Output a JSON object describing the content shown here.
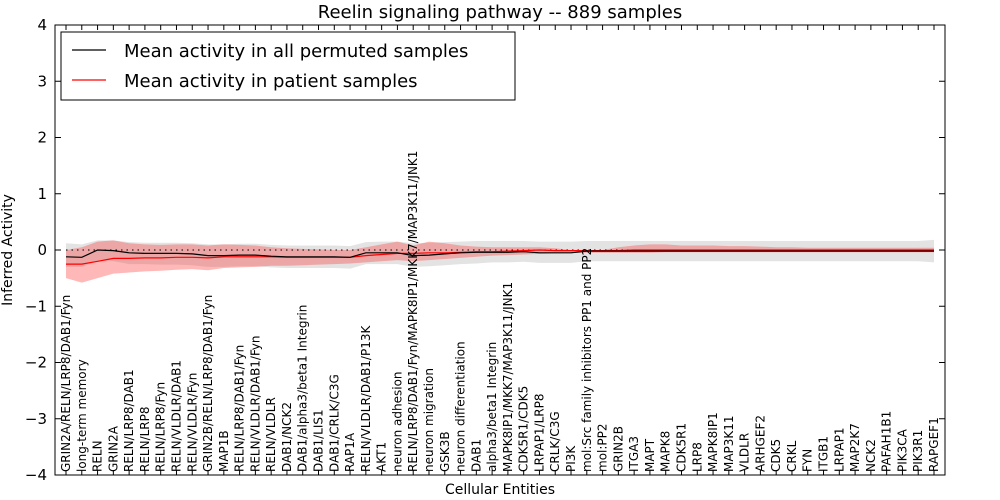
{
  "chart_data": {
    "type": "line",
    "title": "Reelin signaling pathway -- 889 samples",
    "xlabel": "Cellular Entities",
    "ylabel": "Inferred Activity",
    "ylim": [
      -4,
      4
    ],
    "yticks": [
      -4,
      -3,
      -2,
      -1,
      0,
      1,
      2,
      3,
      4
    ],
    "ytick_labels": [
      "−4",
      "−3",
      "−2",
      "−1",
      "0",
      "1",
      "2",
      "3",
      "4"
    ],
    "legend_position": "top-left",
    "categories": [
      "GRIN2A/RELN/LRP8/DAB1/Fyn",
      "long-term memory",
      "RELN",
      "GRIN2A",
      "RELN/LRP8/DAB1",
      "RELN/LRP8",
      "RELN/LRP8/Fyn",
      "RELN/VLDLR/DAB1",
      "RELN/VLDLR/Fyn",
      "GRIN2B/RELN/LRP8/DAB1/Fyn",
      "MAP1B",
      "RELN/LRP8/DAB1/Fyn",
      "RELN/VLDLR/DAB1/Fyn",
      "RELN/VLDLR",
      "DAB1/NCK2",
      "DAB1/alpha3/beta1 Integrin",
      "DAB1/LIS1",
      "DAB1/CRLK/C3G",
      "RAP1A",
      "RELN/VLDLR/DAB1/P13K",
      "AKT1",
      "neuron adhesion",
      "RELN/LRP8/DAB1/Fyn/MAPK8IP1/MKK7/MAP3K11/JNK1",
      "neuron migration",
      "GSK3B",
      "neuron differentiation",
      "DAB1",
      "alpha3/beta1 Integrin",
      "MAPK8IP1/MKK7/MAP3K11/JNK1",
      "CDK5R1/CDK5",
      "LRPAP1/LRP8",
      "CRLK/C3G",
      "PI3K",
      "mol:Src family inhibitors PP1 and PP2",
      "mol:PP2",
      "GRIN2B",
      "ITGA3",
      "MAPT",
      "MAPK8",
      "CDK5R1",
      "LRP8",
      "MAPK8IP1",
      "MAP3K11",
      "VLDLR",
      "ARHGEF2",
      "CDK5",
      "CRKL",
      "FYN",
      "ITGB1",
      "LRPAP1",
      "MAP2K7",
      "NCK2",
      "PAFAH1B1",
      "PIK3CA",
      "PIK3R1",
      "RAPGEF1"
    ],
    "series": [
      {
        "name": "Mean activity in all permuted samples",
        "color": "#000000",
        "values": [
          -0.12,
          -0.13,
          0.0,
          -0.01,
          -0.05,
          -0.06,
          -0.06,
          -0.06,
          -0.07,
          -0.1,
          -0.1,
          -0.09,
          -0.09,
          -0.11,
          -0.12,
          -0.12,
          -0.12,
          -0.12,
          -0.13,
          -0.05,
          -0.05,
          -0.05,
          -0.1,
          -0.09,
          -0.07,
          -0.05,
          -0.04,
          -0.04,
          -0.04,
          -0.03,
          -0.05,
          -0.05,
          -0.05,
          -0.02,
          -0.02,
          -0.02,
          -0.02,
          -0.02,
          -0.02,
          -0.02,
          -0.02,
          -0.02,
          -0.02,
          -0.02,
          -0.02,
          -0.02,
          -0.02,
          -0.02,
          -0.02,
          -0.02,
          -0.02,
          -0.02,
          -0.02,
          -0.02,
          -0.02,
          -0.02
        ],
        "lower": [
          -0.3,
          -0.3,
          -0.2,
          -0.2,
          -0.25,
          -0.25,
          -0.26,
          -0.26,
          -0.27,
          -0.3,
          -0.3,
          -0.29,
          -0.29,
          -0.31,
          -0.32,
          -0.32,
          -0.32,
          -0.32,
          -0.33,
          -0.25,
          -0.25,
          -0.25,
          -0.3,
          -0.29,
          -0.27,
          -0.25,
          -0.24,
          -0.22,
          -0.22,
          -0.21,
          -0.23,
          -0.23,
          -0.23,
          -0.2,
          -0.2,
          -0.2,
          -0.2,
          -0.2,
          -0.2,
          -0.2,
          -0.2,
          -0.2,
          -0.2,
          -0.2,
          -0.2,
          -0.2,
          -0.2,
          -0.2,
          -0.2,
          -0.2,
          -0.2,
          -0.2,
          -0.2,
          -0.2,
          -0.2,
          -0.22
        ],
        "upper": [
          0.12,
          0.1,
          0.17,
          0.17,
          0.14,
          0.13,
          0.13,
          0.13,
          0.12,
          0.1,
          0.1,
          0.11,
          0.11,
          0.09,
          0.08,
          0.08,
          0.08,
          0.08,
          0.07,
          0.14,
          0.15,
          0.15,
          0.12,
          0.13,
          0.14,
          0.15,
          0.16,
          0.16,
          0.16,
          0.16,
          0.15,
          0.15,
          0.15,
          0.16,
          0.16,
          0.16,
          0.16,
          0.16,
          0.16,
          0.16,
          0.16,
          0.16,
          0.16,
          0.16,
          0.16,
          0.16,
          0.16,
          0.16,
          0.16,
          0.16,
          0.16,
          0.16,
          0.16,
          0.16,
          0.16,
          0.18
        ]
      },
      {
        "name": "Mean activity in patient samples",
        "color": "#ff0000",
        "values": [
          -0.25,
          -0.25,
          -0.2,
          -0.15,
          -0.15,
          -0.14,
          -0.14,
          -0.13,
          -0.13,
          -0.14,
          -0.12,
          -0.12,
          -0.12,
          -0.12,
          -0.13,
          -0.13,
          -0.13,
          -0.13,
          -0.13,
          -0.1,
          -0.08,
          -0.06,
          -0.06,
          -0.05,
          -0.05,
          -0.04,
          -0.03,
          -0.03,
          -0.02,
          -0.01,
          0.0,
          -0.01,
          -0.01,
          -0.01,
          -0.01,
          -0.01,
          0.0,
          0.0,
          0.0,
          0.0,
          0.0,
          0.0,
          0.0,
          0.0,
          0.0,
          0.0,
          0.0,
          0.0,
          0.0,
          0.0,
          0.0,
          0.0,
          0.0,
          0.0,
          0.0,
          0.0
        ],
        "lower": [
          -0.5,
          -0.58,
          -0.5,
          -0.42,
          -0.4,
          -0.38,
          -0.37,
          -0.35,
          -0.34,
          -0.36,
          -0.32,
          -0.31,
          -0.3,
          -0.28,
          -0.28,
          -0.27,
          -0.26,
          -0.25,
          -0.24,
          -0.22,
          -0.2,
          -0.18,
          -0.2,
          -0.18,
          -0.16,
          -0.14,
          -0.12,
          -0.1,
          -0.09,
          -0.08,
          -0.07,
          -0.06,
          -0.05,
          -0.05,
          -0.05,
          -0.05,
          -0.05,
          -0.05,
          -0.04,
          -0.04,
          -0.04,
          -0.04,
          -0.04,
          -0.04,
          -0.04,
          -0.04,
          -0.04,
          -0.04,
          -0.04,
          -0.04,
          -0.04,
          -0.04,
          -0.04,
          -0.04,
          -0.04,
          -0.04
        ],
        "upper": [
          0.0,
          0.05,
          0.15,
          0.17,
          0.12,
          0.1,
          0.09,
          0.1,
          0.1,
          0.08,
          0.1,
          0.09,
          0.08,
          0.05,
          0.03,
          0.02,
          0.01,
          0.0,
          0.0,
          0.05,
          0.1,
          0.15,
          0.08,
          0.15,
          0.12,
          0.08,
          0.06,
          0.05,
          0.05,
          0.05,
          0.05,
          0.03,
          0.0,
          0.0,
          0.0,
          0.05,
          0.08,
          0.1,
          0.1,
          0.08,
          0.08,
          0.08,
          0.07,
          0.07,
          0.06,
          0.05,
          0.05,
          0.04,
          0.04,
          0.04,
          0.04,
          0.04,
          0.04,
          0.04,
          0.04,
          0.04
        ]
      }
    ]
  }
}
